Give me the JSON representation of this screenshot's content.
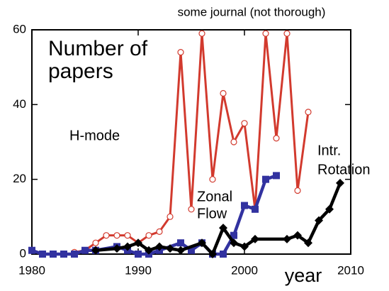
{
  "chart_data": {
    "type": "line",
    "title": "some journal (not thorough)",
    "xlabel": "year",
    "xlim": [
      1980,
      2010
    ],
    "xticks": [
      1980,
      1990,
      2000,
      2010
    ],
    "ylim": [
      0,
      60
    ],
    "yticks": [
      0,
      20,
      40,
      60
    ],
    "annotations": [
      {
        "lines": [
          "Number of",
          "papers"
        ]
      },
      {
        "lines": [
          "H-mode"
        ]
      },
      {
        "lines": [
          "Zonal",
          "Flow"
        ]
      },
      {
        "lines": [
          "Intr.",
          "Rotation"
        ]
      }
    ],
    "series": [
      {
        "color": "#d23a2e",
        "marker": "circle",
        "x": [
          1984,
          1985,
          1986,
          1987,
          1988,
          1989,
          1990,
          1991,
          1992,
          1993,
          1994,
          1995,
          1996,
          1997,
          1998,
          1999,
          2000,
          2001,
          2002,
          2003,
          2004,
          2005,
          2006
        ],
        "values": [
          0.5,
          1,
          3,
          5,
          5,
          5,
          3,
          5,
          6,
          10,
          54,
          12,
          59,
          20,
          43,
          30,
          35,
          12,
          59,
          31,
          59,
          17,
          38
        ]
      },
      {
        "color": "#3232a0",
        "marker": "square",
        "x": [
          1980,
          1981,
          1982,
          1983,
          1984,
          1985,
          1986,
          1988,
          1989,
          1990,
          1991,
          1992,
          1994,
          1995,
          1996,
          1997,
          1998,
          1999,
          2000,
          2001,
          2002,
          2003
        ],
        "values": [
          1,
          0,
          0,
          0,
          0,
          1,
          1,
          2,
          1,
          0,
          0,
          1,
          3,
          1,
          3,
          0,
          0,
          5,
          13,
          12,
          20,
          21
        ]
      },
      {
        "color": "#000000",
        "marker": "diamond",
        "x": [
          1986,
          1988,
          1989,
          1990,
          1991,
          1992,
          1993,
          1994,
          1996,
          1997,
          1998,
          1999,
          2000,
          2001,
          2004,
          2005,
          2006,
          2007,
          2008,
          2009
        ],
        "values": [
          1,
          1.5,
          2,
          3,
          1,
          2,
          1.5,
          1,
          3,
          0,
          7,
          3,
          2,
          4,
          4,
          5,
          3,
          9,
          12,
          19
        ]
      }
    ]
  }
}
